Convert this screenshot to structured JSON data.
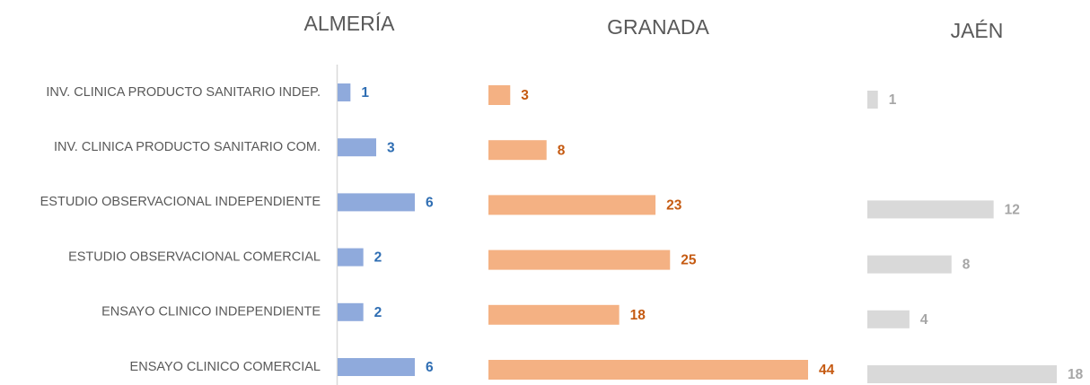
{
  "chart_data": {
    "type": "bar",
    "categories": [
      "INV. CLINICA PRODUCTO SANITARIO INDEP.",
      "INV. CLINICA PRODUCTO SANITARIO COM.",
      "ESTUDIO OBSERVACIONAL INDEPENDIENTE",
      "ESTUDIO OBSERVACIONAL COMERCIAL",
      "ENSAYO CLINICO INDEPENDIENTE",
      "ENSAYO CLINICO COMERCIAL"
    ],
    "series": [
      {
        "name": "ALMERÍA",
        "color": "#8faadc",
        "label_color": "#2f6eb3",
        "values": [
          1,
          3,
          6,
          2,
          2,
          6
        ]
      },
      {
        "name": "GRANADA",
        "color": "#f4b183",
        "label_color": "#c55a11",
        "values": [
          3,
          8,
          23,
          25,
          18,
          44
        ]
      },
      {
        "name": "JAÉN",
        "color": "#d9d9d9",
        "label_color": "#a6a6a6",
        "values": [
          1,
          null,
          12,
          8,
          4,
          18
        ]
      }
    ]
  }
}
